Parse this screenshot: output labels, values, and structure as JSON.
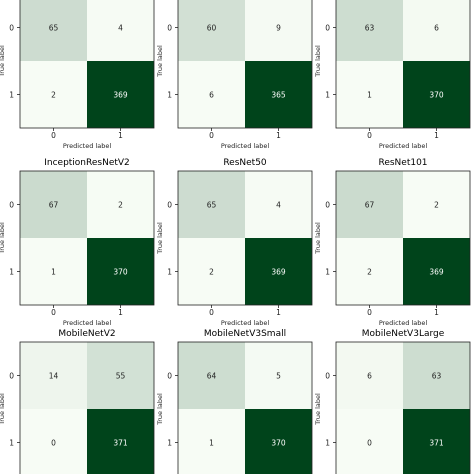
{
  "chart_data": [
    {
      "type": "heatmap",
      "title": "",
      "xlabel": "Predicted label",
      "ylabel": "True label",
      "x_ticks": [
        "0",
        "1"
      ],
      "y_ticks": [
        "0",
        "1"
      ],
      "values": [
        [
          65,
          4
        ],
        [
          2,
          369
        ]
      ]
    },
    {
      "type": "heatmap",
      "title": "",
      "xlabel": "Predicted label",
      "ylabel": "True label",
      "x_ticks": [
        "0",
        "1"
      ],
      "y_ticks": [
        "0",
        "1"
      ],
      "values": [
        [
          60,
          9
        ],
        [
          6,
          365
        ]
      ]
    },
    {
      "type": "heatmap",
      "title": "",
      "xlabel": "Predicted label",
      "ylabel": "True label",
      "x_ticks": [
        "0",
        "1"
      ],
      "y_ticks": [
        "0",
        "1"
      ],
      "values": [
        [
          63,
          6
        ],
        [
          1,
          370
        ]
      ]
    },
    {
      "type": "heatmap",
      "title": "InceptionResNetV2",
      "xlabel": "Predicted label",
      "ylabel": "True label",
      "x_ticks": [
        "0",
        "1"
      ],
      "y_ticks": [
        "0",
        "1"
      ],
      "values": [
        [
          67,
          2
        ],
        [
          1,
          370
        ]
      ]
    },
    {
      "type": "heatmap",
      "title": "ResNet50",
      "xlabel": "Predicted label",
      "ylabel": "True label",
      "x_ticks": [
        "0",
        "1"
      ],
      "y_ticks": [
        "0",
        "1"
      ],
      "values": [
        [
          65,
          4
        ],
        [
          2,
          369
        ]
      ]
    },
    {
      "type": "heatmap",
      "title": "ResNet101",
      "xlabel": "Predicted label",
      "ylabel": "True label",
      "x_ticks": [
        "0",
        "1"
      ],
      "y_ticks": [
        "0",
        "1"
      ],
      "values": [
        [
          67,
          2
        ],
        [
          2,
          369
        ]
      ]
    },
    {
      "type": "heatmap",
      "title": "MobileNetV2",
      "xlabel": "",
      "ylabel": "True label",
      "x_ticks": [],
      "y_ticks": [
        "0",
        "1"
      ],
      "values": [
        [
          14,
          55
        ],
        [
          0,
          371
        ]
      ]
    },
    {
      "type": "heatmap",
      "title": "MobileNetV3Small",
      "xlabel": "",
      "ylabel": "True label",
      "x_ticks": [],
      "y_ticks": [
        "0",
        "1"
      ],
      "values": [
        [
          64,
          5
        ],
        [
          1,
          370
        ]
      ]
    },
    {
      "type": "heatmap",
      "title": "MobileNetV3Large",
      "xlabel": "",
      "ylabel": "True label",
      "x_ticks": [],
      "y_ticks": [
        "0",
        "1"
      ],
      "values": [
        [
          6,
          63
        ],
        [
          0,
          371
        ]
      ]
    }
  ],
  "colormap": {
    "name": "Greens",
    "low": "#f7fcf5",
    "high": "#00441b"
  }
}
